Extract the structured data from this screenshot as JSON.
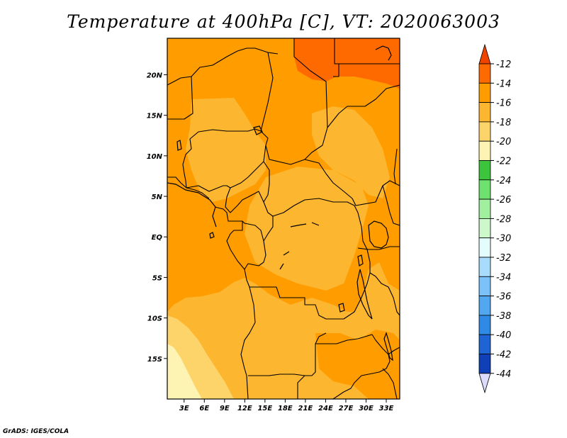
{
  "title": "Temperature at 400hPa [C], VT: 2020063003",
  "credit": "GrADS: IGES/COLA",
  "map": {
    "lon_labels": [
      "3E",
      "6E",
      "9E",
      "12E",
      "15E",
      "18E",
      "21E",
      "24E",
      "27E",
      "30E",
      "33E"
    ],
    "lat_labels": [
      "20N",
      "15N",
      "10N",
      "5N",
      "EQ",
      "5S",
      "10S",
      "15S"
    ],
    "lon_values": [
      3,
      6,
      9,
      12,
      15,
      18,
      21,
      24,
      27,
      30,
      33
    ],
    "lat_values": [
      20,
      15,
      10,
      5,
      0,
      -5,
      -10,
      -15
    ],
    "lon_range": [
      0.5,
      35
    ],
    "lat_range": [
      -20,
      24.5
    ]
  },
  "colorbar": {
    "labels": [
      "-12",
      "-14",
      "-16",
      "-18",
      "-20",
      "-22",
      "-24",
      "-26",
      "-28",
      "-30",
      "-32",
      "-34",
      "-36",
      "-38",
      "-40",
      "-42",
      "-44"
    ],
    "colors": [
      "#ee4400",
      "#ff6a00",
      "#ff9c00",
      "#fdb630",
      "#fdd46a",
      "#fdf4b4",
      "#3cc43c",
      "#6ee26e",
      "#a0f0a0",
      "#ccf8cc",
      "#e4fcfc",
      "#a8dcfc",
      "#7cc2fa",
      "#52a8f0",
      "#2e8ae4",
      "#1e64d4",
      "#1040b8",
      "#08108a",
      "#dcdcfc"
    ]
  }
}
